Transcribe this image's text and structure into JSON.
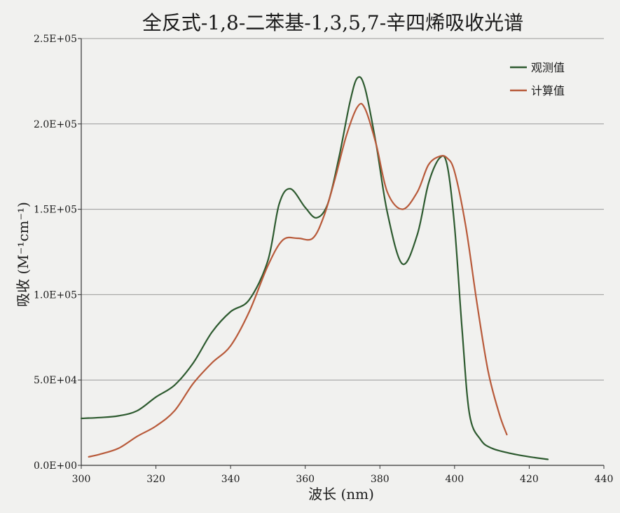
{
  "chart_data": {
    "type": "line",
    "title": "全反式-1,8-二苯基-1,3,5,7-辛四烯吸收光谱",
    "xlabel": "波长 (nm)",
    "ylabel": "吸收 (M⁻¹cm⁻¹)",
    "xlim": [
      300,
      440
    ],
    "ylim": [
      0,
      250000
    ],
    "xticks": [
      300,
      320,
      340,
      360,
      380,
      400,
      420,
      440
    ],
    "yticks": [
      0,
      50000,
      100000,
      150000,
      200000,
      250000
    ],
    "ytick_labels": [
      "0.0E+00",
      "5.0E+04",
      "1.0E+05",
      "1.5E+05",
      "2.0E+05",
      "2.5E+05"
    ],
    "grid": "horizontal",
    "legend_position": "top-right",
    "series": [
      {
        "name": "观测值",
        "color": "#2d5a2f",
        "points": [
          [
            300,
            27500
          ],
          [
            305,
            28000
          ],
          [
            310,
            29000
          ],
          [
            315,
            32000
          ],
          [
            320,
            40000
          ],
          [
            325,
            47000
          ],
          [
            330,
            60000
          ],
          [
            335,
            78000
          ],
          [
            340,
            90000
          ],
          [
            345,
            97000
          ],
          [
            350,
            120000
          ],
          [
            353,
            153000
          ],
          [
            356,
            162000
          ],
          [
            360,
            151000
          ],
          [
            363,
            145000
          ],
          [
            366,
            153000
          ],
          [
            369,
            180000
          ],
          [
            372,
            213000
          ],
          [
            374,
            227000
          ],
          [
            376,
            221000
          ],
          [
            379,
            188000
          ],
          [
            382,
            148000
          ],
          [
            386,
            118000
          ],
          [
            390,
            135000
          ],
          [
            393,
            165000
          ],
          [
            396,
            180000
          ],
          [
            398,
            176000
          ],
          [
            400,
            140000
          ],
          [
            402,
            80000
          ],
          [
            404,
            30000
          ],
          [
            407,
            15000
          ],
          [
            410,
            10000
          ],
          [
            415,
            7000
          ],
          [
            420,
            5000
          ],
          [
            425,
            3500
          ]
        ]
      },
      {
        "name": "计算值",
        "color": "#b85a3a",
        "points": [
          [
            302,
            5000
          ],
          [
            305,
            6500
          ],
          [
            310,
            10000
          ],
          [
            315,
            17000
          ],
          [
            320,
            23000
          ],
          [
            325,
            32000
          ],
          [
            330,
            48000
          ],
          [
            335,
            60000
          ],
          [
            340,
            70000
          ],
          [
            345,
            90000
          ],
          [
            350,
            117000
          ],
          [
            354,
            132000
          ],
          [
            358,
            133000
          ],
          [
            362,
            133000
          ],
          [
            365,
            146000
          ],
          [
            368,
            168000
          ],
          [
            371,
            193000
          ],
          [
            374,
            210000
          ],
          [
            376,
            209000
          ],
          [
            379,
            188000
          ],
          [
            382,
            160000
          ],
          [
            386,
            150000
          ],
          [
            390,
            160000
          ],
          [
            393,
            176000
          ],
          [
            396,
            181000
          ],
          [
            398,
            180000
          ],
          [
            400,
            172000
          ],
          [
            403,
            140000
          ],
          [
            406,
            95000
          ],
          [
            409,
            55000
          ],
          [
            412,
            30000
          ],
          [
            414,
            18000
          ]
        ]
      }
    ]
  }
}
